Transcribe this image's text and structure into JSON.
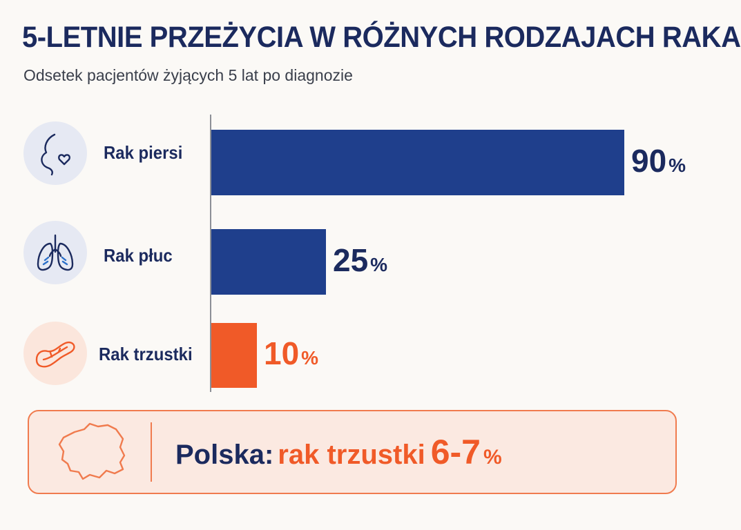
{
  "title": "5-LETNIE PRZEŻYCIA W RÓŻNYCH RODZAJACH RAKA",
  "subtitle": "Odsetek pacjentów żyjących 5 lat po diagnozie",
  "colors": {
    "navy": "#1b2a5e",
    "bar_blue": "#1f3f8c",
    "accent_orange": "#f05a28"
  },
  "icons": {
    "breast": "breast-heart-icon",
    "lung": "lungs-icon",
    "pancreas": "pancreas-icon",
    "poland": "poland-map-icon"
  },
  "chart_data": {
    "type": "bar",
    "orientation": "horizontal",
    "title": "5-LETNIE PRZEŻYCIA W RÓŻNYCH RODZAJACH RAKA",
    "subtitle": "Odsetek pacjentów żyjących 5 lat po diagnozie",
    "categories": [
      "Rak piersi",
      "Rak płuc",
      "Rak trzustki"
    ],
    "values": [
      90,
      25,
      10
    ],
    "value_labels": [
      "90",
      "25",
      "10"
    ],
    "unit": "%",
    "bar_colors": [
      "#1f3f8c",
      "#1f3f8c",
      "#f05a28"
    ],
    "xlim": [
      0,
      90
    ],
    "grid": false
  },
  "callout": {
    "prefix": "Polska:",
    "label": "rak trzustki",
    "value": "6-7",
    "unit": "%"
  }
}
